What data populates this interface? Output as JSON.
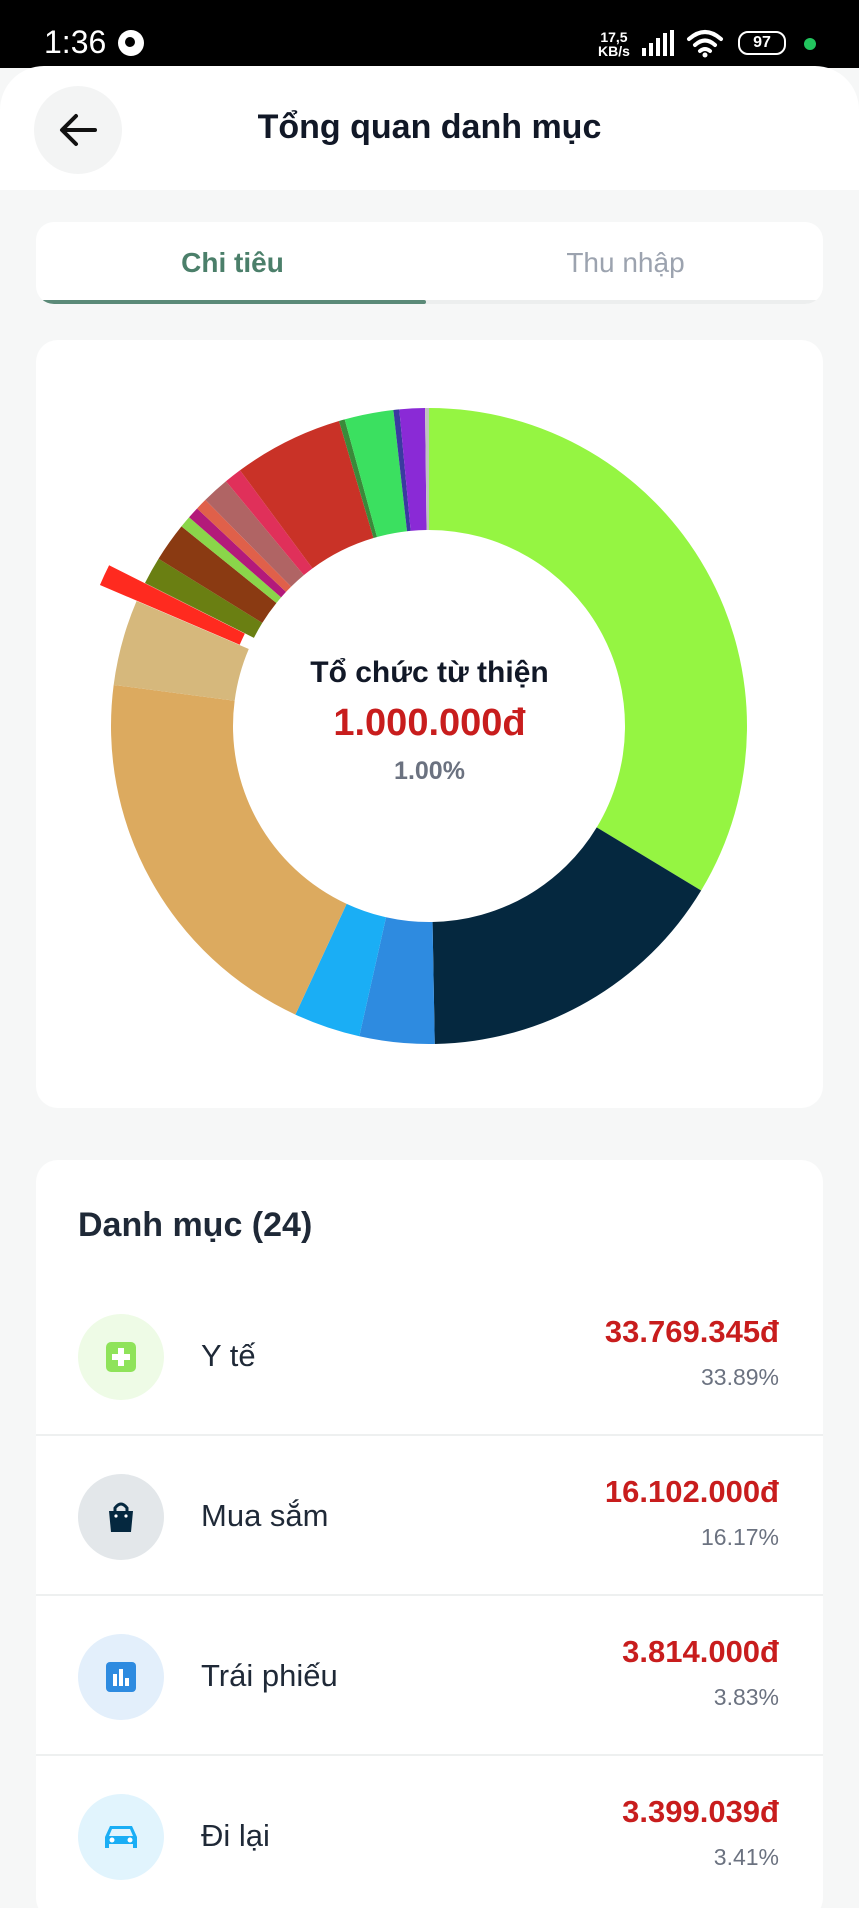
{
  "status_bar": {
    "time": "1:36",
    "speed_value": "17,5",
    "speed_unit": "KB/s",
    "battery": "97"
  },
  "header": {
    "title": "Tổng quan danh mục",
    "back_icon": "arrow-left-icon"
  },
  "tabs": [
    {
      "label": "Chi tiêu",
      "active": true
    },
    {
      "label": "Thu nhập",
      "active": false
    }
  ],
  "chart_data": {
    "type": "pie",
    "donut": true,
    "selected": {
      "name": "Tổ chức từ thiện",
      "amount": "1.000.000đ",
      "percent": "1.00%",
      "color": "#ff2a1f"
    },
    "slices": [
      {
        "percent": 33.89,
        "color": "#95f542"
      },
      {
        "percent": 16.17,
        "color": "#05283f"
      },
      {
        "percent": 3.83,
        "color": "#2e8be0"
      },
      {
        "percent": 3.41,
        "color": "#1aaef5"
      },
      {
        "percent": 20.3,
        "color": "#dcaa5f"
      },
      {
        "percent": 4.4,
        "color": "#d6b87c"
      },
      {
        "percent": 1.0,
        "color": "#ff2a1f",
        "exploded": true
      },
      {
        "percent": 1.4,
        "color": "#6a7f12"
      },
      {
        "percent": 2.0,
        "color": "#8a3a12"
      },
      {
        "percent": 0.6,
        "color": "#8ad64a"
      },
      {
        "percent": 0.6,
        "color": "#b31a7a"
      },
      {
        "percent": 0.6,
        "color": "#e0604a"
      },
      {
        "percent": 1.4,
        "color": "#b06464"
      },
      {
        "percent": 0.9,
        "color": "#e0305a"
      },
      {
        "percent": 5.6,
        "color": "#c93227"
      },
      {
        "percent": 0.3,
        "color": "#3a8a3a"
      },
      {
        "percent": 2.5,
        "color": "#3be060"
      },
      {
        "percent": 0.3,
        "color": "#3a3aa0"
      },
      {
        "percent": 1.3,
        "color": "#8a2ad6"
      },
      {
        "percent": 0.2,
        "color": "#c0c0c0"
      }
    ]
  },
  "categories": {
    "title": "Danh mục (24)",
    "items": [
      {
        "name": "Y tế",
        "amount": "33.769.345đ",
        "percent": "33.89%",
        "icon": "medical-plus-icon",
        "color": "#8fe35a",
        "bg": "#eefbe6"
      },
      {
        "name": "Mua sắm",
        "amount": "16.102.000đ",
        "percent": "16.17%",
        "icon": "shopping-bag-icon",
        "color": "#05283f",
        "bg": "#e3e7ea"
      },
      {
        "name": "Trái phiếu",
        "amount": "3.814.000đ",
        "percent": "3.83%",
        "icon": "bar-chart-icon",
        "color": "#2e8be0",
        "bg": "#e3effb"
      },
      {
        "name": "Đi lại",
        "amount": "3.399.039đ",
        "percent": "3.41%",
        "icon": "car-icon",
        "color": "#1aaef5",
        "bg": "#e1f4fd"
      }
    ]
  }
}
